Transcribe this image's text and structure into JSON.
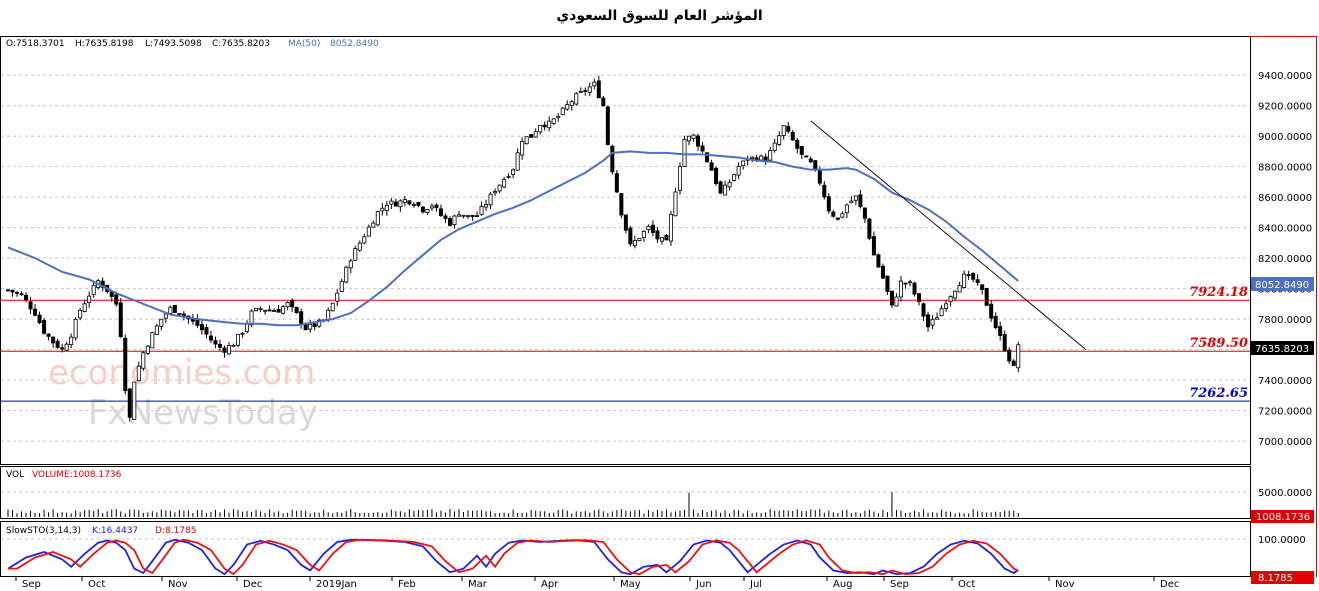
{
  "title": "المؤشر العام للسوق السعودي",
  "watermark": {
    "line1": "economies.com",
    "line2": "FxNewsToday"
  },
  "colors": {
    "up": "#ffffff",
    "down": "#000000",
    "ma": "#4f6fbf",
    "resistance": "#e00000",
    "support": "#0000cc",
    "k": "#2222dd",
    "d": "#ee1111",
    "grid": "#c8c8c8"
  },
  "ohlc": {
    "open": "O:7518.3701",
    "high": "H:7635.8198",
    "low": "L:7493.5098",
    "close": "C:7635.8203"
  },
  "ma_label": "MA(50)",
  "ma_value": "8052.8490",
  "last_price": "7635.8203",
  "levels": [
    {
      "label": "7924.18",
      "value": 7924.18,
      "color": "#e00000"
    },
    {
      "label": "7589.50",
      "value": 7589.5,
      "color": "#e00000"
    },
    {
      "label": "7262.65",
      "value": 7262.65,
      "color": "#0000cc"
    }
  ],
  "volume_panel": {
    "label": "VOL",
    "value_label": "VOLUME:1008.1736",
    "axis_tick": "5000.0000",
    "last": "1008.1736"
  },
  "stoch_panel": {
    "label": "SlowSTO(3,14,3)",
    "k_label": "K:16.4437",
    "d_label": "D:8.1785",
    "axis_tick": "100.0000",
    "last": "8.1785"
  },
  "chart_data": {
    "type": "candlestick",
    "title": "المؤشر العام للسوق السعودي",
    "y_ticks": [
      9400,
      9200,
      9000,
      8800,
      8600,
      8400,
      8200,
      8000,
      7800,
      7600,
      7400,
      7200,
      7000
    ],
    "y_tick_labels": [
      "9400.0000",
      "9200.0000",
      "9000.0000",
      "8800.0000",
      "8600.0000",
      "8400.0000",
      "8200.0000",
      "8000.0000",
      "7800.0000",
      "7600.0000",
      "7400.0000",
      "7200.0000",
      "7000.0000"
    ],
    "ylim": [
      6850,
      9650
    ],
    "months": [
      "Sep",
      "Oct",
      "Nov",
      "Dec",
      "2019Jan",
      "Feb",
      "Mar",
      "Apr",
      "May",
      "Jun",
      "Jul",
      "Aug",
      "Sep",
      "Oct",
      "Nov",
      "Dec"
    ],
    "price_path": [
      [
        0,
        7990
      ],
      [
        3,
        7960
      ],
      [
        6,
        7840
      ],
      [
        8,
        7720
      ],
      [
        10,
        7650
      ],
      [
        12,
        7600
      ],
      [
        14,
        7700
      ],
      [
        16,
        7860
      ],
      [
        18,
        7960
      ],
      [
        20,
        8050
      ],
      [
        22,
        7990
      ],
      [
        24,
        7900
      ],
      [
        25,
        7700
      ],
      [
        26,
        7350
      ],
      [
        27,
        7150
      ],
      [
        28,
        7400
      ],
      [
        30,
        7580
      ],
      [
        32,
        7700
      ],
      [
        34,
        7800
      ],
      [
        36,
        7870
      ],
      [
        38,
        7850
      ],
      [
        40,
        7800
      ],
      [
        42,
        7760
      ],
      [
        44,
        7700
      ],
      [
        46,
        7630
      ],
      [
        48,
        7600
      ],
      [
        50,
        7640
      ],
      [
        52,
        7720
      ],
      [
        54,
        7840
      ],
      [
        56,
        7870
      ],
      [
        58,
        7860
      ],
      [
        60,
        7860
      ],
      [
        62,
        7900
      ],
      [
        64,
        7830
      ],
      [
        66,
        7740
      ],
      [
        68,
        7760
      ],
      [
        70,
        7790
      ],
      [
        72,
        7900
      ],
      [
        74,
        8050
      ],
      [
        76,
        8200
      ],
      [
        78,
        8300
      ],
      [
        80,
        8400
      ],
      [
        82,
        8500
      ],
      [
        84,
        8560
      ],
      [
        86,
        8560
      ],
      [
        88,
        8580
      ],
      [
        90,
        8570
      ],
      [
        92,
        8520
      ],
      [
        94,
        8550
      ],
      [
        96,
        8480
      ],
      [
        98,
        8430
      ],
      [
        100,
        8500
      ],
      [
        102,
        8470
      ],
      [
        104,
        8480
      ],
      [
        106,
        8560
      ],
      [
        108,
        8650
      ],
      [
        110,
        8720
      ],
      [
        112,
        8790
      ],
      [
        114,
        8980
      ],
      [
        116,
        9000
      ],
      [
        118,
        9080
      ],
      [
        120,
        9080
      ],
      [
        122,
        9130
      ],
      [
        124,
        9200
      ],
      [
        126,
        9260
      ],
      [
        128,
        9300
      ],
      [
        130,
        9340
      ],
      [
        132,
        9200
      ],
      [
        133,
        8950
      ],
      [
        134,
        8780
      ],
      [
        136,
        8500
      ],
      [
        138,
        8280
      ],
      [
        140,
        8340
      ],
      [
        142,
        8400
      ],
      [
        144,
        8330
      ],
      [
        146,
        8300
      ],
      [
        148,
        8650
      ],
      [
        150,
        8980
      ],
      [
        152,
        9000
      ],
      [
        154,
        8900
      ],
      [
        156,
        8780
      ],
      [
        158,
        8620
      ],
      [
        160,
        8700
      ],
      [
        162,
        8800
      ],
      [
        164,
        8850
      ],
      [
        166,
        8860
      ],
      [
        168,
        8850
      ],
      [
        170,
        8940
      ],
      [
        172,
        9060
      ],
      [
        174,
        8970
      ],
      [
        176,
        8870
      ],
      [
        178,
        8820
      ],
      [
        180,
        8700
      ],
      [
        182,
        8520
      ],
      [
        184,
        8450
      ],
      [
        186,
        8550
      ],
      [
        188,
        8600
      ],
      [
        190,
        8460
      ],
      [
        192,
        8220
      ],
      [
        194,
        8070
      ],
      [
        196,
        7880
      ],
      [
        198,
        8040
      ],
      [
        200,
        8030
      ],
      [
        202,
        7900
      ],
      [
        204,
        7750
      ],
      [
        206,
        7820
      ],
      [
        208,
        7920
      ],
      [
        210,
        8000
      ],
      [
        212,
        8080
      ],
      [
        214,
        8060
      ],
      [
        216,
        7980
      ],
      [
        218,
        7820
      ],
      [
        220,
        7680
      ],
      [
        222,
        7540
      ],
      [
        223,
        7480
      ],
      [
        224,
        7635
      ]
    ],
    "ma50_path": [
      [
        0,
        8270
      ],
      [
        6,
        8200
      ],
      [
        12,
        8110
      ],
      [
        18,
        8060
      ],
      [
        24,
        7970
      ],
      [
        30,
        7900
      ],
      [
        36,
        7830
      ],
      [
        42,
        7800
      ],
      [
        48,
        7780
      ],
      [
        52,
        7770
      ],
      [
        56,
        7770
      ],
      [
        60,
        7760
      ],
      [
        64,
        7760
      ],
      [
        68,
        7780
      ],
      [
        72,
        7800
      ],
      [
        76,
        7840
      ],
      [
        80,
        7920
      ],
      [
        84,
        8010
      ],
      [
        88,
        8120
      ],
      [
        92,
        8220
      ],
      [
        96,
        8320
      ],
      [
        100,
        8390
      ],
      [
        104,
        8440
      ],
      [
        108,
        8490
      ],
      [
        112,
        8530
      ],
      [
        116,
        8580
      ],
      [
        120,
        8640
      ],
      [
        124,
        8700
      ],
      [
        128,
        8760
      ],
      [
        132,
        8840
      ],
      [
        134,
        8890
      ],
      [
        138,
        8900
      ],
      [
        142,
        8890
      ],
      [
        146,
        8890
      ],
      [
        150,
        8880
      ],
      [
        154,
        8880
      ],
      [
        158,
        8870
      ],
      [
        162,
        8860
      ],
      [
        166,
        8840
      ],
      [
        170,
        8830
      ],
      [
        174,
        8800
      ],
      [
        178,
        8780
      ],
      [
        182,
        8780
      ],
      [
        186,
        8790
      ],
      [
        188,
        8780
      ],
      [
        192,
        8720
      ],
      [
        196,
        8630
      ],
      [
        200,
        8580
      ],
      [
        204,
        8520
      ],
      [
        208,
        8440
      ],
      [
        212,
        8340
      ],
      [
        216,
        8250
      ],
      [
        220,
        8150
      ],
      [
        224,
        8050
      ]
    ],
    "trendline": [
      [
        178,
        9100
      ],
      [
        239,
        7600
      ]
    ],
    "volume_spikes": [
      [
        151,
        4850
      ],
      [
        196,
        4950
      ]
    ],
    "stoch_path": [
      [
        0,
        20
      ],
      [
        4,
        50
      ],
      [
        8,
        65
      ],
      [
        12,
        45
      ],
      [
        14,
        25
      ],
      [
        17,
        60
      ],
      [
        20,
        90
      ],
      [
        22,
        96
      ],
      [
        24,
        90
      ],
      [
        26,
        70
      ],
      [
        28,
        20
      ],
      [
        30,
        8
      ],
      [
        32,
        40
      ],
      [
        35,
        90
      ],
      [
        37,
        98
      ],
      [
        40,
        90
      ],
      [
        43,
        70
      ],
      [
        46,
        20
      ],
      [
        48,
        5
      ],
      [
        50,
        30
      ],
      [
        53,
        85
      ],
      [
        56,
        95
      ],
      [
        59,
        85
      ],
      [
        62,
        70
      ],
      [
        65,
        30
      ],
      [
        67,
        15
      ],
      [
        70,
        60
      ],
      [
        73,
        92
      ],
      [
        76,
        98
      ],
      [
        80,
        97
      ],
      [
        84,
        95
      ],
      [
        88,
        92
      ],
      [
        92,
        80
      ],
      [
        95,
        40
      ],
      [
        98,
        10
      ],
      [
        101,
        20
      ],
      [
        104,
        55
      ],
      [
        106,
        25
      ],
      [
        108,
        60
      ],
      [
        111,
        90
      ],
      [
        114,
        96
      ],
      [
        118,
        92
      ],
      [
        122,
        95
      ],
      [
        126,
        97
      ],
      [
        130,
        92
      ],
      [
        133,
        45
      ],
      [
        136,
        10
      ],
      [
        138,
        5
      ],
      [
        141,
        25
      ],
      [
        144,
        30
      ],
      [
        146,
        10
      ],
      [
        149,
        40
      ],
      [
        152,
        85
      ],
      [
        155,
        96
      ],
      [
        158,
        90
      ],
      [
        160,
        70
      ],
      [
        162,
        40
      ],
      [
        164,
        10
      ],
      [
        166,
        30
      ],
      [
        169,
        60
      ],
      [
        172,
        85
      ],
      [
        175,
        96
      ],
      [
        178,
        85
      ],
      [
        180,
        50
      ],
      [
        183,
        15
      ],
      [
        186,
        8
      ],
      [
        189,
        10
      ],
      [
        192,
        5
      ],
      [
        194,
        15
      ],
      [
        197,
        5
      ],
      [
        200,
        8
      ],
      [
        203,
        25
      ],
      [
        206,
        60
      ],
      [
        209,
        85
      ],
      [
        212,
        95
      ],
      [
        215,
        88
      ],
      [
        218,
        60
      ],
      [
        221,
        20
      ],
      [
        223,
        8
      ],
      [
        224,
        16
      ]
    ]
  }
}
